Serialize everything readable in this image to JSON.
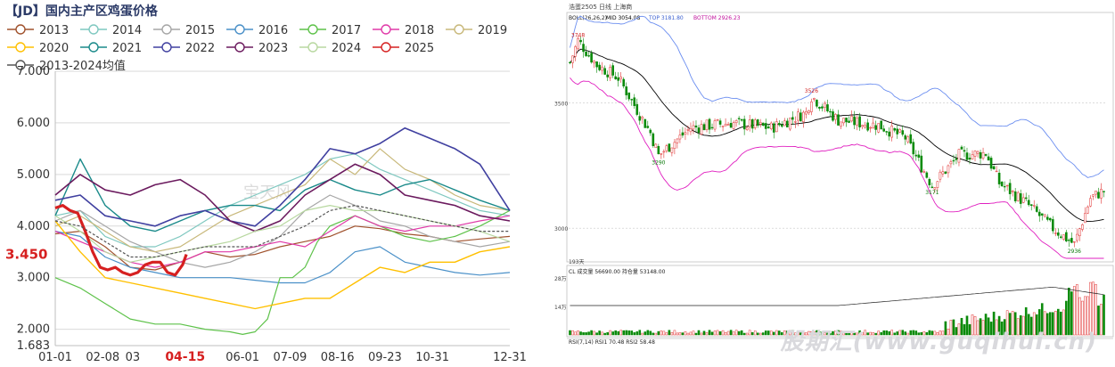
{
  "left_chart": {
    "title": "【JD】国内主产区鸡蛋价格",
    "current_label": "3.450",
    "watermark": "宝天风",
    "highlight_x_label": "04-15"
  },
  "right_chart": {
    "header": {
      "left_text": "浩蛋2505 日线 上海商",
      "indicator": "BOLL(26,26,2)",
      "mid": "MID 3054.08",
      "top": "TOP 3181.80",
      "bottom": "BOTTOM 2926.23"
    },
    "price_labels": [
      "3500",
      "3000"
    ],
    "annotations": [
      "3748",
      "3526",
      "3290",
      "3171",
      "2936"
    ],
    "volume_header": "CL  成交量 56690.00  持仓量 53148.00",
    "volume_labels": [
      "28万",
      "14万"
    ],
    "rsi_header": "RSI(7,14)  RSI1 70.48  RSI2 58.48",
    "days_label": "193天",
    "watermark": "股期汇(www.guqihui.cn)"
  },
  "chart_data": [
    {
      "type": "line",
      "title": "【JD】国内主产区鸡蛋价格",
      "xlabel": "",
      "ylabel": "",
      "x_ticks": [
        "01-01",
        "02-08",
        "03",
        "04-15",
        "06-01",
        "07-09",
        "08-16",
        "09-23",
        "10-31",
        "12-31"
      ],
      "x_tick_positions": [
        0,
        38,
        62,
        104,
        150,
        188,
        226,
        264,
        302,
        364
      ],
      "y_ticks": [
        "1.683",
        "2.000",
        "3.000",
        "4.000",
        "5.000",
        "6.000",
        "7.000"
      ],
      "y_tick_values": [
        1.683,
        2.0,
        3.0,
        4.0,
        5.0,
        6.0,
        7.0
      ],
      "ylim": [
        1.683,
        7.0
      ],
      "xlim": [
        0,
        364
      ],
      "legend_position": "top",
      "grid": true,
      "series": [
        {
          "name": "2013",
          "color": "#a0522d",
          "width": 1.2,
          "x": [
            0,
            20,
            40,
            60,
            80,
            100,
            120,
            140,
            160,
            180,
            200,
            220,
            240,
            260,
            280,
            300,
            320,
            340,
            364
          ],
          "values": [
            3.85,
            3.9,
            3.6,
            3.2,
            3.15,
            3.3,
            3.5,
            3.4,
            3.45,
            3.6,
            3.7,
            3.8,
            4.0,
            3.95,
            3.85,
            3.8,
            3.7,
            3.75,
            3.8
          ]
        },
        {
          "name": "2014",
          "color": "#7fc8c0",
          "width": 1.2,
          "x": [
            0,
            20,
            40,
            60,
            80,
            100,
            120,
            140,
            160,
            180,
            200,
            220,
            240,
            260,
            280,
            300,
            320,
            340,
            364
          ],
          "values": [
            4.2,
            4.3,
            3.8,
            3.6,
            3.6,
            3.8,
            4.1,
            4.4,
            4.6,
            4.8,
            5.0,
            5.3,
            5.4,
            5.1,
            4.9,
            4.7,
            4.5,
            4.3,
            4.2
          ]
        },
        {
          "name": "2015",
          "color": "#a6a6a6",
          "width": 1.2,
          "x": [
            0,
            20,
            40,
            60,
            80,
            100,
            120,
            140,
            160,
            180,
            200,
            220,
            240,
            260,
            280,
            300,
            320,
            340,
            364
          ],
          "values": [
            4.1,
            4.3,
            4.0,
            3.7,
            3.5,
            3.3,
            3.2,
            3.3,
            3.5,
            3.8,
            4.3,
            4.6,
            4.4,
            4.1,
            4.0,
            3.8,
            3.7,
            3.6,
            3.7
          ]
        },
        {
          "name": "2016",
          "color": "#4a90c8",
          "width": 1.2,
          "x": [
            0,
            20,
            40,
            60,
            80,
            100,
            120,
            140,
            160,
            180,
            200,
            220,
            240,
            260,
            280,
            300,
            320,
            340,
            364
          ],
          "values": [
            3.9,
            3.8,
            3.4,
            3.2,
            3.1,
            3.0,
            3.0,
            3.0,
            2.95,
            2.9,
            2.9,
            3.1,
            3.5,
            3.6,
            3.3,
            3.2,
            3.1,
            3.05,
            3.1
          ]
        },
        {
          "name": "2017",
          "color": "#5ec24a",
          "width": 1.2,
          "x": [
            0,
            20,
            40,
            60,
            80,
            100,
            120,
            140,
            150,
            160,
            170,
            180,
            190,
            200,
            210,
            220,
            240,
            260,
            280,
            300,
            320,
            340,
            364
          ],
          "values": [
            3.0,
            2.8,
            2.5,
            2.2,
            2.1,
            2.1,
            2.0,
            1.95,
            1.9,
            1.95,
            2.2,
            3.0,
            3.0,
            3.2,
            3.7,
            4.0,
            4.2,
            4.0,
            3.8,
            3.7,
            3.8,
            4.0,
            4.3
          ]
        },
        {
          "name": "2018",
          "color": "#e03aa8",
          "width": 1.2,
          "x": [
            0,
            20,
            40,
            60,
            80,
            100,
            120,
            140,
            160,
            180,
            200,
            220,
            240,
            260,
            280,
            300,
            320,
            340,
            364
          ],
          "values": [
            3.9,
            3.7,
            3.5,
            3.3,
            3.2,
            3.3,
            3.5,
            3.5,
            3.6,
            3.7,
            3.6,
            3.9,
            4.2,
            4.0,
            3.9,
            4.0,
            4.0,
            4.1,
            4.2
          ]
        },
        {
          "name": "2019",
          "color": "#c8b87a",
          "width": 1.2,
          "x": [
            0,
            20,
            40,
            60,
            80,
            100,
            120,
            140,
            160,
            180,
            200,
            220,
            240,
            260,
            280,
            300,
            320,
            340,
            364
          ],
          "values": [
            4.0,
            4.2,
            3.9,
            3.6,
            3.5,
            3.6,
            3.9,
            4.2,
            4.4,
            4.6,
            4.8,
            5.3,
            5.0,
            5.5,
            5.1,
            4.9,
            4.6,
            4.4,
            4.3
          ]
        },
        {
          "name": "2020",
          "color": "#ffc000",
          "width": 1.4,
          "x": [
            0,
            20,
            40,
            60,
            80,
            100,
            120,
            140,
            160,
            180,
            200,
            220,
            240,
            260,
            280,
            300,
            320,
            340,
            364
          ],
          "values": [
            4.1,
            3.5,
            3.0,
            2.9,
            2.8,
            2.7,
            2.6,
            2.5,
            2.4,
            2.5,
            2.6,
            2.6,
            2.9,
            3.2,
            3.1,
            3.3,
            3.3,
            3.5,
            3.6
          ]
        },
        {
          "name": "2021",
          "color": "#1a8a8a",
          "width": 1.4,
          "x": [
            0,
            20,
            40,
            60,
            80,
            100,
            120,
            140,
            160,
            180,
            200,
            220,
            240,
            260,
            280,
            300,
            320,
            340,
            364
          ],
          "values": [
            4.2,
            5.3,
            4.4,
            4.0,
            3.9,
            4.1,
            4.3,
            4.4,
            4.4,
            4.3,
            4.7,
            4.9,
            4.7,
            4.6,
            4.8,
            4.9,
            4.7,
            4.5,
            4.3
          ]
        },
        {
          "name": "2022",
          "color": "#4040a0",
          "width": 1.6,
          "x": [
            0,
            20,
            40,
            60,
            80,
            100,
            120,
            140,
            160,
            180,
            200,
            220,
            240,
            260,
            280,
            300,
            320,
            340,
            364
          ],
          "values": [
            4.5,
            4.6,
            4.2,
            4.1,
            4.0,
            4.2,
            4.3,
            4.1,
            4.0,
            4.4,
            4.9,
            5.5,
            5.4,
            5.6,
            5.9,
            5.7,
            5.5,
            5.2,
            4.3
          ]
        },
        {
          "name": "2023",
          "color": "#6b1a5e",
          "width": 1.6,
          "x": [
            0,
            20,
            40,
            60,
            80,
            100,
            120,
            140,
            160,
            180,
            200,
            220,
            240,
            260,
            280,
            300,
            320,
            340,
            364
          ],
          "values": [
            4.6,
            5.0,
            4.7,
            4.6,
            4.8,
            4.9,
            4.6,
            4.1,
            3.9,
            4.1,
            4.6,
            4.9,
            5.2,
            5.0,
            4.6,
            4.5,
            4.4,
            4.2,
            4.1
          ]
        },
        {
          "name": "2024",
          "color": "#b8d8a0",
          "width": 1.2,
          "x": [
            0,
            20,
            40,
            60,
            80,
            100,
            120,
            140,
            160,
            180,
            200,
            220,
            240,
            260,
            280,
            300,
            320,
            340,
            364
          ],
          "values": [
            4.2,
            3.9,
            3.5,
            3.3,
            3.4,
            3.5,
            3.6,
            3.7,
            3.9,
            4.0,
            4.3,
            4.4,
            4.3,
            4.3,
            4.2,
            4.1,
            4.0,
            3.9,
            3.7
          ]
        },
        {
          "name": "2025",
          "color": "#d62020",
          "width": 3.2,
          "x": [
            0,
            6,
            12,
            18,
            24,
            30,
            36,
            42,
            48,
            54,
            60,
            66,
            72,
            78,
            84,
            90,
            96,
            102,
            105
          ],
          "values": [
            4.35,
            4.4,
            4.3,
            4.25,
            3.9,
            3.5,
            3.2,
            3.15,
            3.2,
            3.1,
            3.05,
            3.1,
            3.25,
            3.3,
            3.3,
            3.1,
            3.05,
            3.25,
            3.45
          ]
        },
        {
          "name": "2013-2024均值",
          "color": "#555555",
          "width": 1.2,
          "dash": "3,2",
          "x": [
            0,
            20,
            40,
            60,
            80,
            100,
            120,
            140,
            160,
            180,
            200,
            220,
            240,
            260,
            280,
            300,
            320,
            340,
            364
          ],
          "values": [
            4.1,
            4.0,
            3.7,
            3.4,
            3.4,
            3.5,
            3.6,
            3.6,
            3.6,
            3.8,
            4.0,
            4.3,
            4.4,
            4.3,
            4.2,
            4.1,
            4.0,
            3.9,
            3.9
          ]
        }
      ]
    },
    {
      "type": "candlestick",
      "title": "",
      "y_ticks": [
        "3500",
        "3000"
      ],
      "y_tick_values": [
        3500,
        3000
      ],
      "ylim": [
        2880,
        3810
      ],
      "up_color": "#e03030",
      "down_color": "#0a8a0a",
      "boll": {
        "mid_color": "#000000",
        "top_color": "#6b8ef0",
        "bottom_color": "#e020c0"
      },
      "annotations": [
        {
          "label": "3748",
          "index": 3,
          "value": 3748
        },
        {
          "label": "3526",
          "index": 90,
          "value": 3526
        },
        {
          "label": "3290",
          "index": 33,
          "value": 3290
        },
        {
          "label": "3171",
          "index": 135,
          "value": 3171
        },
        {
          "label": "2936",
          "index": 188,
          "value": 2936
        }
      ]
    }
  ]
}
